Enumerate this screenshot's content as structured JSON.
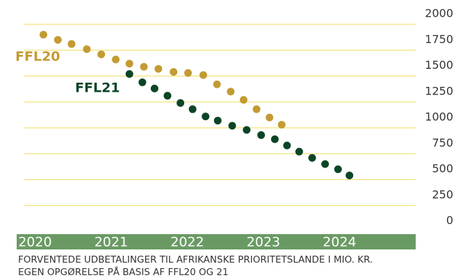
{
  "chart_data": {
    "type": "scatter",
    "series": [
      {
        "name": "FFL20",
        "color": "#c39b33",
        "x": [
          2020.11,
          2020.3,
          2020.48,
          2020.68,
          2020.87,
          2021.06,
          2021.24,
          2021.43,
          2021.62,
          2021.82,
          2022.01,
          2022.21,
          2022.39,
          2022.57,
          2022.74,
          2022.91,
          2023.08,
          2023.24
        ],
        "values": [
          1900,
          1850,
          1810,
          1760,
          1710,
          1660,
          1620,
          1590,
          1570,
          1540,
          1530,
          1510,
          1420,
          1350,
          1270,
          1180,
          1100,
          1030
        ]
      },
      {
        "name": "FFL21",
        "color": "#0c4526",
        "x": [
          2021.24,
          2021.41,
          2021.57,
          2021.74,
          2021.91,
          2022.07,
          2022.24,
          2022.4,
          2022.59,
          2022.78,
          2022.97,
          2023.15,
          2023.31,
          2023.47,
          2023.64,
          2023.81,
          2023.98,
          2024.13
        ],
        "values": [
          1520,
          1440,
          1380,
          1310,
          1240,
          1180,
          1110,
          1070,
          1020,
          980,
          930,
          890,
          830,
          770,
          710,
          650,
          600,
          540
        ]
      }
    ],
    "xlim": [
      2019.54,
      2025.0
    ],
    "xticks": [
      2020,
      2021,
      2022,
      2023,
      2024
    ],
    "ylim": [
      0,
      2000
    ],
    "yticks": [
      0,
      250,
      500,
      750,
      1000,
      1250,
      1500,
      1750,
      2000
    ],
    "grid": true,
    "grid_color": "#f3e27c",
    "axis_band_color": "#6a9a64",
    "caption": [
      "FORVENTEDE UDBETALINGER TIL AFRIKANSKE PRIORITETSLANDE I MIO. KR.",
      "EGEN OPGØRELSE PÅ BASIS AF FFL20 OG 21"
    ]
  }
}
